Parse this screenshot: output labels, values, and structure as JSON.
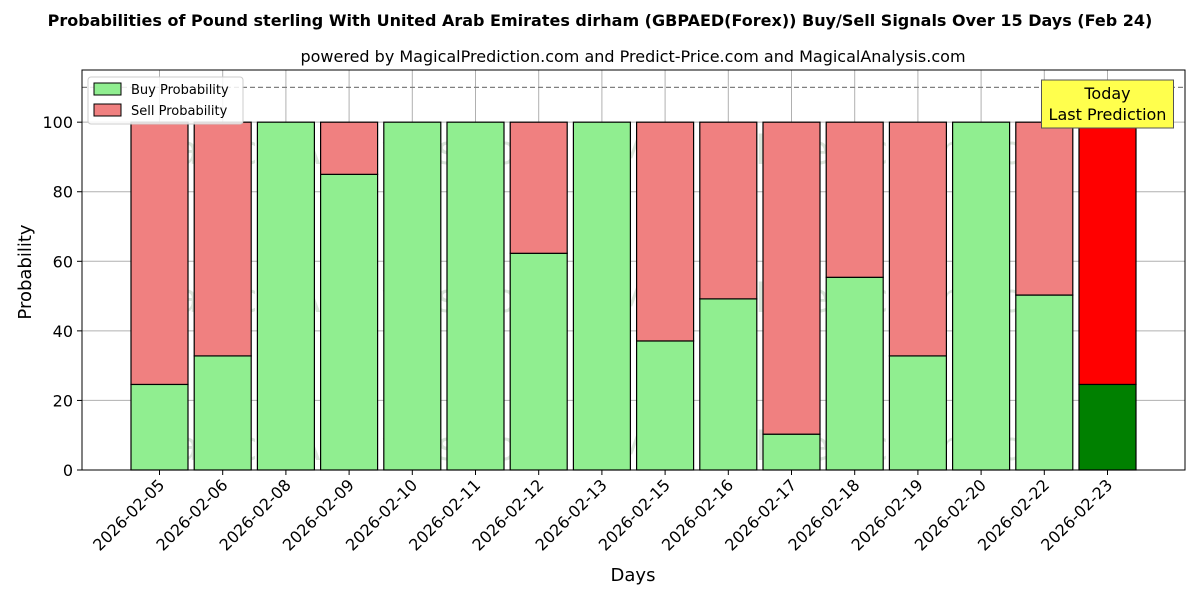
{
  "chart_data": {
    "type": "bar",
    "title": "Probabilities of Pound sterling With United Arab Emirates dirham (GBPAED(Forex)) Buy/Sell Signals Over 15 Days (Feb 24)",
    "subtitle": "powered by MagicalPrediction.com and Predict-Price.com and MagicalAnalysis.com",
    "xlabel": "Days",
    "ylabel": "Probability",
    "ylim": [
      0,
      115
    ],
    "yticks": [
      0,
      20,
      40,
      60,
      80,
      100
    ],
    "reference_line": 110,
    "grid": true,
    "legend_position": "top-left",
    "stacked": true,
    "categories": [
      "2026-02-05",
      "2026-02-06",
      "2026-02-08",
      "2026-02-09",
      "2026-02-10",
      "2026-02-11",
      "2026-02-12",
      "2026-02-13",
      "2026-02-15",
      "2026-02-16",
      "2026-02-17",
      "2026-02-18",
      "2026-02-19",
      "2026-02-20",
      "2026-02-22",
      "2026-02-23"
    ],
    "series": [
      {
        "name": "Buy Probability",
        "values": [
          24.6,
          32.8,
          100,
          85.0,
          100,
          100,
          62.3,
          100,
          37.1,
          49.2,
          10.3,
          55.4,
          32.8,
          100,
          50.3,
          24.6
        ]
      },
      {
        "name": "Sell Probability",
        "values": [
          75.4,
          67.2,
          0,
          15.0,
          0,
          0,
          37.7,
          0,
          62.9,
          50.8,
          89.7,
          44.6,
          67.2,
          0,
          49.7,
          75.4
        ]
      }
    ],
    "annotation": {
      "lines": [
        "Today",
        "Last Prediction"
      ],
      "category_index": 15
    },
    "watermarks": [
      "MagicalAnalysis.com",
      "MagicalPrediction.com"
    ]
  },
  "colors": {
    "buy": "#90ee90",
    "sell": "#f08080",
    "buy_today": "#008000",
    "sell_today": "#ff0000",
    "annotation_bg": "#ffff4d",
    "grid": "#b0b0b0"
  }
}
